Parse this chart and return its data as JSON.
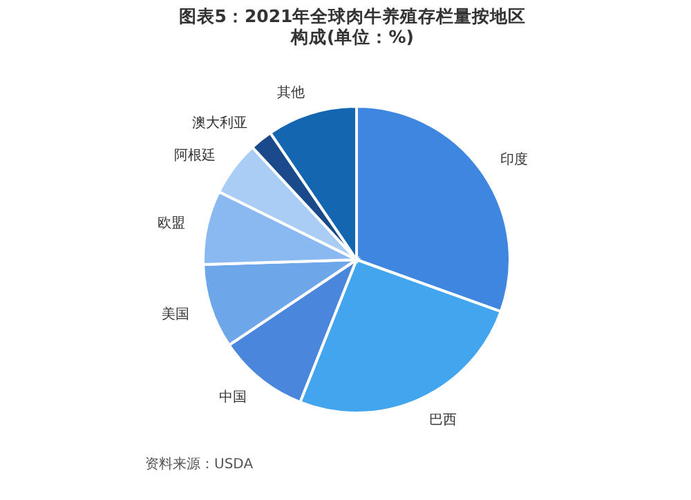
{
  "chart_data": {
    "type": "pie",
    "title": "图表5：2021年全球肉牛养殖存栏量按地区构成(单位：%)",
    "categories": [
      "印度",
      "巴西",
      "中国",
      "美国",
      "欧盟",
      "阿根廷",
      "澳大利亚",
      "其他"
    ],
    "values": [
      30.5,
      25.5,
      9.6,
      8.9,
      7.8,
      5.8,
      2.4,
      9.5
    ],
    "colors": [
      "#3e86e0",
      "#42a5ee",
      "#4a86dc",
      "#6ea6ea",
      "#8ab8f0",
      "#a9cdf5",
      "#1a4a8a",
      "#1466b0"
    ],
    "annotations": [
      "资料来源：USDA"
    ]
  }
}
